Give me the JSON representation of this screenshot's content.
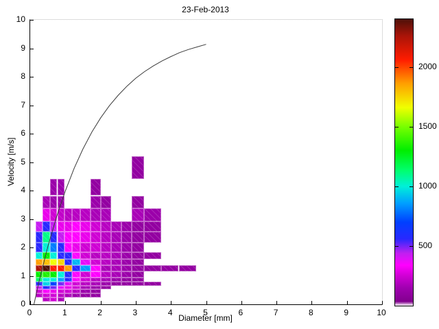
{
  "figure": {
    "title": "23-Feb-2013",
    "xlabel": "Diameter [mm]",
    "ylabel": "Velocity [m/s]"
  },
  "axes": {
    "x_range": [
      0,
      10
    ],
    "y_range": [
      0,
      10
    ],
    "x_ticks": [
      0,
      1,
      2,
      3,
      4,
      5,
      6,
      7,
      8,
      9,
      10
    ],
    "y_ticks": [
      0,
      1,
      2,
      3,
      4,
      5,
      6,
      7,
      8,
      9,
      10
    ],
    "grid": false
  },
  "colorbar": {
    "min": 0,
    "max": 2400,
    "tick_values": [
      500,
      1000,
      1500,
      2000
    ],
    "tick_labels": [
      "500",
      "1000",
      "1500",
      "2000"
    ],
    "colormap_stops": [
      [
        0,
        "#ffffff"
      ],
      [
        35,
        "#82008e"
      ],
      [
        150,
        "#a000b0"
      ],
      [
        260,
        "#d400d8"
      ],
      [
        340,
        "#ff00ff"
      ],
      [
        440,
        "#c020f0"
      ],
      [
        560,
        "#2828ff"
      ],
      [
        700,
        "#0040ff"
      ],
      [
        860,
        "#00a0ff"
      ],
      [
        1000,
        "#00f0d8"
      ],
      [
        1130,
        "#00ff70"
      ],
      [
        1300,
        "#00ee00"
      ],
      [
        1500,
        "#78ff00"
      ],
      [
        1660,
        "#f0ff00"
      ],
      [
        1860,
        "#ffa000"
      ],
      [
        2060,
        "#ff1c00"
      ],
      [
        2260,
        "#aa1408"
      ],
      [
        2400,
        "#4e1008"
      ]
    ]
  },
  "chart_data": {
    "type": "heatmap",
    "title": "23-Feb-2013",
    "xlabel": "Diameter [mm]",
    "ylabel": "Velocity [m/s]",
    "xlim": [
      0,
      10
    ],
    "ylim": [
      0,
      10
    ],
    "value_label": "counts",
    "value_range": [
      0,
      2400
    ],
    "diameter_edges_mm": [
      0.15,
      0.35,
      0.56,
      0.77,
      0.98,
      1.19,
      1.43,
      1.72,
      2.01,
      2.3,
      2.59,
      2.88,
      3.24,
      3.73,
      4.22,
      4.71
    ],
    "velocity_edges_ms": [
      0.1,
      0.24,
      0.39,
      0.53,
      0.66,
      0.8,
      0.94,
      1.16,
      1.37,
      1.59,
      1.83,
      2.17,
      2.55,
      2.92,
      3.37,
      3.82,
      4.42,
      5.2
    ],
    "counts_rows_bottom_to_top": [
      [
        0,
        200,
        250,
        170,
        0,
        0,
        0,
        0,
        0,
        0,
        0,
        0,
        0,
        0,
        0
      ],
      [
        200,
        250,
        250,
        200,
        170,
        130,
        100,
        100,
        0,
        0,
        0,
        0,
        0,
        0,
        0
      ],
      [
        250,
        340,
        300,
        250,
        250,
        200,
        130,
        100,
        0,
        0,
        0,
        0,
        0,
        0,
        0
      ],
      [
        430,
        560,
        500,
        380,
        300,
        250,
        170,
        130,
        100,
        0,
        0,
        0,
        0,
        0,
        0
      ],
      [
        560,
        950,
        700,
        500,
        380,
        250,
        200,
        170,
        130,
        100,
        100,
        100,
        100,
        0,
        0
      ],
      [
        1150,
        1000,
        1000,
        860,
        560,
        340,
        250,
        200,
        170,
        130,
        100,
        100,
        0,
        0,
        0
      ],
      [
        1300,
        1350,
        1300,
        1000,
        560,
        340,
        250,
        340,
        200,
        170,
        130,
        100,
        0,
        0,
        0
      ],
      [
        2260,
        2400,
        2060,
        2060,
        1860,
        560,
        860,
        340,
        170,
        170,
        130,
        100,
        100,
        100,
        100
      ],
      [
        1860,
        1800,
        1660,
        1750,
        560,
        900,
        380,
        250,
        200,
        170,
        130,
        100,
        0,
        0,
        0
      ],
      [
        1000,
        1300,
        1000,
        560,
        560,
        340,
        250,
        200,
        200,
        170,
        130,
        100,
        100,
        0,
        0
      ],
      [
        560,
        1000,
        800,
        560,
        340,
        300,
        250,
        250,
        200,
        170,
        130,
        100,
        0,
        0,
        0
      ],
      [
        560,
        1100,
        560,
        430,
        340,
        340,
        300,
        250,
        200,
        170,
        130,
        100,
        100,
        0,
        0
      ],
      [
        430,
        560,
        430,
        300,
        300,
        340,
        300,
        250,
        200,
        170,
        130,
        100,
        100,
        0,
        0
      ],
      [
        0,
        300,
        250,
        220,
        200,
        200,
        200,
        170,
        170,
        0,
        0,
        170,
        130,
        0,
        0
      ],
      [
        0,
        170,
        130,
        130,
        0,
        0,
        0,
        130,
        100,
        0,
        0,
        100,
        0,
        0,
        0
      ],
      [
        0,
        0,
        130,
        130,
        0,
        0,
        0,
        100,
        0,
        0,
        0,
        0,
        0,
        0,
        0
      ],
      [
        0,
        0,
        0,
        0,
        0,
        0,
        0,
        0,
        0,
        0,
        0,
        100,
        0,
        0,
        0
      ]
    ],
    "curve": {
      "name": "terminal-velocity-curve",
      "color": "#3a3a3a",
      "points": [
        [
          0.108,
          0.0
        ],
        [
          0.25,
          0.79
        ],
        [
          0.5,
          2.02
        ],
        [
          0.75,
          3.08
        ],
        [
          1.0,
          3.99
        ],
        [
          1.25,
          4.78
        ],
        [
          1.5,
          5.46
        ],
        [
          1.75,
          6.05
        ],
        [
          2.0,
          6.55
        ],
        [
          2.25,
          6.98
        ],
        [
          2.5,
          7.35
        ],
        [
          2.75,
          7.67
        ],
        [
          3.0,
          7.95
        ],
        [
          3.25,
          8.18
        ],
        [
          3.5,
          8.38
        ],
        [
          3.75,
          8.56
        ],
        [
          4.0,
          8.71
        ],
        [
          4.25,
          8.85
        ],
        [
          4.5,
          8.96
        ],
        [
          4.75,
          9.05
        ],
        [
          5.0,
          9.14
        ]
      ]
    }
  }
}
